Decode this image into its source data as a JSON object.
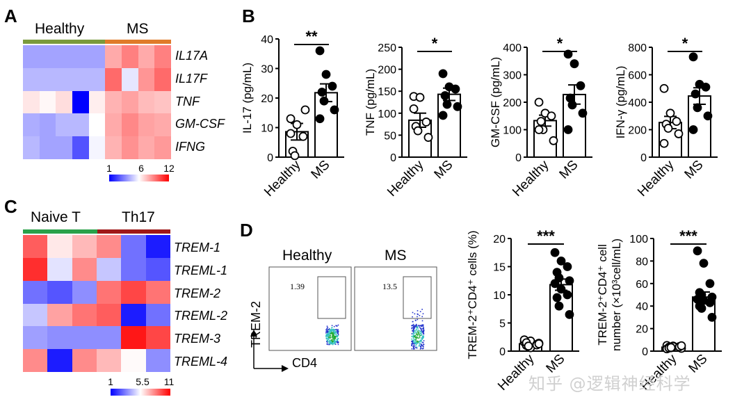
{
  "panel_labels": {
    "a": "A",
    "b": "B",
    "c": "C",
    "d": "D"
  },
  "colors": {
    "healthy_bar": "#7a9a3c",
    "ms_bar": "#e07b2a",
    "naive_bar": "#2aa14a",
    "th17_bar": "#a01818",
    "low": "#0000ff",
    "mid": "#ffffff",
    "high": "#ff0000"
  },
  "heatmap_a": {
    "group_left": "Healthy",
    "group_right": "MS",
    "genes": [
      "IL17A",
      "IL17F",
      "TNF",
      "GM-CSF",
      "IFNG"
    ],
    "scale": {
      "min": "1",
      "mid": "6",
      "max": "12"
    },
    "values": [
      [
        4.2,
        4.2,
        4.2,
        4.2,
        4.2,
        8.0,
        9.0,
        8.0,
        9.0
      ],
      [
        4.6,
        4.6,
        4.6,
        4.6,
        4.6,
        9.5,
        5.5,
        8.5,
        9.5
      ],
      [
        6.6,
        6.2,
        6.8,
        1.0,
        6.4,
        7.8,
        8.2,
        7.6,
        7.4
      ],
      [
        4.4,
        4.2,
        4.6,
        4.6,
        6.0,
        8.0,
        8.8,
        8.2,
        8.0
      ],
      [
        4.6,
        4.2,
        4.2,
        2.6,
        5.8,
        7.8,
        8.6,
        8.0,
        8.4
      ]
    ]
  },
  "heatmap_c": {
    "group_left": "Naive T",
    "group_right": "Th17",
    "genes": [
      "TREM-1",
      "TREML-1",
      "TREM-2",
      "TREML-2",
      "TREM-3",
      "TREML-4"
    ],
    "scale": {
      "min": "1",
      "mid": "5.5",
      "max": "11"
    },
    "values": [
      [
        9.0,
        6.0,
        7.0,
        8.0,
        3.0,
        1.5
      ],
      [
        10.0,
        5.0,
        8.0,
        4.5,
        3.0,
        2.5
      ],
      [
        3.0,
        2.5,
        3.5,
        8.5,
        9.5,
        8.5
      ],
      [
        4.5,
        7.5,
        8.5,
        9.0,
        1.5,
        3.0
      ],
      [
        3.8,
        3.5,
        3.5,
        3.5,
        10.5,
        9.5
      ],
      [
        8.0,
        1.5,
        8.0,
        7.0,
        5.6,
        3.5
      ]
    ]
  },
  "flow": {
    "ylabel": "TREM-2",
    "xlabel": "CD4",
    "panels": [
      {
        "title": "Healthy",
        "gate_pct": "1.39"
      },
      {
        "title": "MS",
        "gate_pct": "13.5"
      }
    ]
  },
  "chart_data": [
    {
      "type": "bar",
      "id": "il17",
      "ylabel": "IL-17 (pg/mL)",
      "categories": [
        "Healthy",
        "MS"
      ],
      "ylim": [
        0,
        40
      ],
      "ticks": [
        "0",
        "10",
        "20",
        "30",
        "40"
      ],
      "tick_values": [
        0,
        10,
        20,
        30,
        40
      ],
      "means": [
        8.6,
        21.8
      ],
      "sem": [
        2.8,
        3.0
      ],
      "significance": "**",
      "points": [
        [
          13,
          11,
          7,
          2,
          0.5,
          16,
          8
        ],
        [
          36,
          28,
          24,
          22,
          19,
          16,
          13
        ]
      ]
    },
    {
      "type": "bar",
      "id": "tnf",
      "ylabel": "TNF (pg/mL)",
      "categories": [
        "Healthy",
        "MS"
      ],
      "ylim": [
        0,
        250
      ],
      "ticks": [
        "0",
        "50",
        "100",
        "150",
        "200",
        "250"
      ],
      "tick_values": [
        0,
        50,
        100,
        150,
        200,
        250
      ],
      "means": [
        84,
        143
      ],
      "sem": [
        16,
        14
      ],
      "significance": "*",
      "points": [
        [
          138,
          136,
          80,
          70,
          60,
          45,
          110
        ],
        [
          190,
          160,
          155,
          140,
          120,
          115,
          95
        ]
      ]
    },
    {
      "type": "bar",
      "id": "gmcsf",
      "ylabel": "GM-CSF (pg/mL)",
      "categories": [
        "Healthy",
        "MS"
      ],
      "ylim": [
        0,
        400
      ],
      "ticks": [
        "0",
        "100",
        "200",
        "300",
        "400"
      ],
      "tick_values": [
        0,
        100,
        200,
        300,
        400
      ],
      "means": [
        133,
        228
      ],
      "sem": [
        20,
        35
      ],
      "significance": "*",
      "points": [
        [
          200,
          160,
          150,
          130,
          100,
          60,
          100
        ],
        [
          375,
          340,
          260,
          215,
          190,
          160,
          100
        ]
      ]
    },
    {
      "type": "bar",
      "id": "ifng",
      "ylabel": "IFN-γ (pg/mL)",
      "categories": [
        "Healthy",
        "MS"
      ],
      "ylim": [
        0,
        800
      ],
      "ticks": [
        "0",
        "200",
        "400",
        "600",
        "800"
      ],
      "tick_values": [
        0,
        200,
        400,
        600,
        800
      ],
      "means": [
        252,
        445
      ],
      "sem": [
        45,
        60
      ],
      "significance": "*",
      "points": [
        [
          500,
          320,
          260,
          240,
          210,
          170,
          100
        ],
        [
          730,
          530,
          510,
          460,
          360,
          300,
          200
        ]
      ]
    },
    {
      "type": "bar",
      "id": "trem2_pct",
      "ylabel": "TREM-2⁺CD4⁺ cells (%)",
      "categories": [
        "Healthy",
        "MS"
      ],
      "ylim": [
        0,
        20
      ],
      "ticks": [
        "0",
        "5",
        "10",
        "15",
        "20"
      ],
      "tick_values": [
        0,
        5,
        10,
        15,
        20
      ],
      "means": [
        1.3,
        11.8
      ],
      "sem": [
        0.2,
        1.0
      ],
      "significance": "***",
      "points": [
        [
          1.6,
          1.8,
          1.2,
          1.0,
          0.8,
          1.4,
          2.0,
          0.6,
          1.1,
          1.5,
          0.9,
          1.3
        ],
        [
          17.5,
          16.0,
          15.0,
          14.0,
          13.0,
          12.5,
          12.0,
          11.0,
          10.0,
          9.5,
          8.0,
          6.5
        ]
      ]
    },
    {
      "type": "bar",
      "id": "trem2_num",
      "ylabel_line1": "TREM-2⁺CD4⁺ cell",
      "ylabel_line2": "number (×10³cell/mL)",
      "categories": [
        "Healthy",
        "MS"
      ],
      "ylim": [
        0,
        100
      ],
      "ticks": [
        "0",
        "20",
        "40",
        "60",
        "80",
        "100"
      ],
      "tick_values": [
        0,
        20,
        40,
        60,
        80,
        100
      ],
      "means": [
        3.5,
        48
      ],
      "sem": [
        0.6,
        4.5
      ],
      "significance": "***",
      "points": [
        [
          5.0,
          4.5,
          4.0,
          3.5,
          3.0,
          2.5,
          2.0,
          4.2,
          3.8,
          2.8,
          3.2,
          4.8
        ],
        [
          89,
          78,
          60,
          52,
          50,
          48,
          46,
          45,
          43,
          40,
          38,
          30
        ]
      ]
    }
  ],
  "watermark": "知乎 @逻辑神经科学"
}
